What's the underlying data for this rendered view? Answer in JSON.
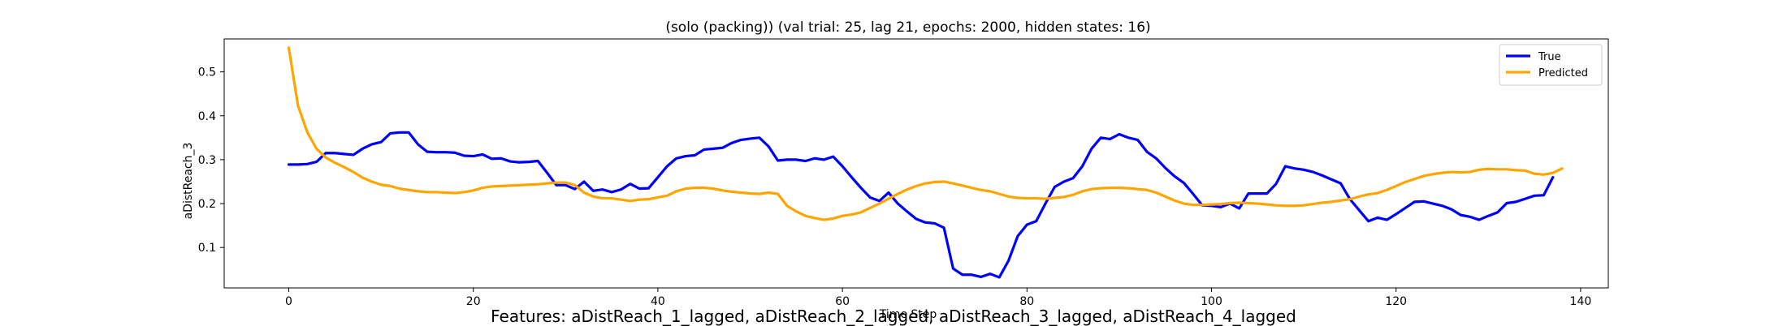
{
  "chart_data": {
    "type": "line",
    "title": "(solo (packing)) (val trial: 25, lag 21, epochs: 2000, hidden states: 16)",
    "xlabel": "Time Step",
    "ylabel": "aDistReach_3",
    "xlim": [
      -7,
      143
    ],
    "ylim": [
      0.008,
      0.575
    ],
    "xticks": [
      0,
      20,
      40,
      60,
      80,
      100,
      120,
      140
    ],
    "yticks": [
      0.1,
      0.2,
      0.3,
      0.4,
      0.5
    ],
    "grid": false,
    "legend_position": "top-right",
    "series": [
      {
        "name": "True",
        "color": "#0000ff",
        "values": [
          0.289,
          0.289,
          0.29,
          0.295,
          0.315,
          0.315,
          0.313,
          0.311,
          0.325,
          0.335,
          0.34,
          0.36,
          0.362,
          0.362,
          0.335,
          0.318,
          0.317,
          0.317,
          0.316,
          0.309,
          0.308,
          0.312,
          0.302,
          0.303,
          0.296,
          0.294,
          0.295,
          0.297,
          0.27,
          0.242,
          0.242,
          0.233,
          0.25,
          0.229,
          0.232,
          0.226,
          0.232,
          0.245,
          0.234,
          0.235,
          0.26,
          0.285,
          0.303,
          0.308,
          0.31,
          0.323,
          0.325,
          0.327,
          0.338,
          0.345,
          0.348,
          0.35,
          0.33,
          0.298,
          0.3,
          0.3,
          0.297,
          0.303,
          0.3,
          0.307,
          0.285,
          0.26,
          0.236,
          0.214,
          0.206,
          0.225,
          0.2,
          0.182,
          0.165,
          0.157,
          0.155,
          0.145,
          0.052,
          0.038,
          0.038,
          0.033,
          0.04,
          0.032,
          0.07,
          0.126,
          0.152,
          0.16,
          0.2,
          0.238,
          0.25,
          0.258,
          0.285,
          0.325,
          0.35,
          0.347,
          0.358,
          0.35,
          0.345,
          0.318,
          0.303,
          0.281,
          0.262,
          0.247,
          0.222,
          0.196,
          0.195,
          0.192,
          0.2,
          0.189,
          0.223,
          0.223,
          0.223,
          0.245,
          0.285,
          0.28,
          0.277,
          0.272,
          0.264,
          0.255,
          0.246,
          0.21,
          0.185,
          0.16,
          0.168,
          0.163,
          0.176,
          0.19,
          0.204,
          0.205,
          0.2,
          0.195,
          0.187,
          0.174,
          0.17,
          0.163,
          0.172,
          0.18,
          0.201,
          0.204,
          0.211,
          0.218,
          0.219,
          0.26
        ]
      },
      {
        "name": "Predicted",
        "color": "#ffa500",
        "values": [
          0.555,
          0.423,
          0.363,
          0.325,
          0.305,
          0.293,
          0.283,
          0.272,
          0.259,
          0.25,
          0.243,
          0.24,
          0.234,
          0.231,
          0.228,
          0.226,
          0.226,
          0.225,
          0.224,
          0.226,
          0.23,
          0.236,
          0.239,
          0.24,
          0.241,
          0.242,
          0.243,
          0.244,
          0.246,
          0.248,
          0.248,
          0.242,
          0.225,
          0.216,
          0.212,
          0.212,
          0.209,
          0.206,
          0.209,
          0.21,
          0.214,
          0.218,
          0.228,
          0.234,
          0.236,
          0.236,
          0.234,
          0.23,
          0.227,
          0.225,
          0.223,
          0.222,
          0.225,
          0.222,
          0.195,
          0.182,
          0.172,
          0.167,
          0.163,
          0.166,
          0.172,
          0.175,
          0.18,
          0.19,
          0.2,
          0.211,
          0.222,
          0.232,
          0.24,
          0.246,
          0.249,
          0.25,
          0.246,
          0.241,
          0.236,
          0.231,
          0.228,
          0.222,
          0.216,
          0.213,
          0.212,
          0.212,
          0.211,
          0.213,
          0.215,
          0.22,
          0.228,
          0.233,
          0.235,
          0.236,
          0.236,
          0.235,
          0.233,
          0.231,
          0.225,
          0.216,
          0.207,
          0.2,
          0.197,
          0.197,
          0.198,
          0.199,
          0.201,
          0.202,
          0.201,
          0.2,
          0.198,
          0.196,
          0.195,
          0.195,
          0.196,
          0.199,
          0.202,
          0.204,
          0.207,
          0.21,
          0.216,
          0.221,
          0.224,
          0.231,
          0.24,
          0.249,
          0.256,
          0.263,
          0.267,
          0.27,
          0.272,
          0.271,
          0.272,
          0.277,
          0.279,
          0.278,
          0.278,
          0.276,
          0.275,
          0.268,
          0.266,
          0.27,
          0.28
        ]
      }
    ],
    "footer": "Features: aDistReach_1_lagged, aDistReach_2_lagged, aDistReach_3_lagged, aDistReach_4_lagged"
  }
}
